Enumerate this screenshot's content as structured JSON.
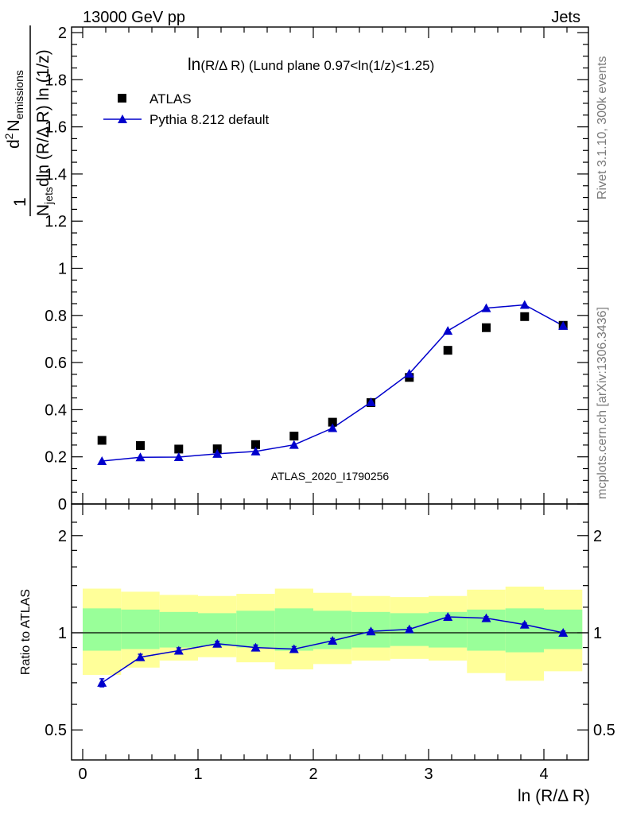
{
  "header": {
    "left": "13000 GeV pp",
    "right": "Jets"
  },
  "side_labels": {
    "rivet": "Rivet 3.1.10,  300k events",
    "mcplots": "mcplots.cern.ch [arXiv:1306.3436]"
  },
  "watermark": "ATLAS_2020_I1790256",
  "colors": {
    "mc": "#0000cc",
    "data": "#000000",
    "band_inner": "#99ff99",
    "band_outer": "#ffff99"
  },
  "chart_data": [
    {
      "type": "scatter",
      "panel": "main",
      "title_main": "ln",
      "title_rest": "(R/Δ R)  (Lund plane 0.97<ln(1/z)<1.25)",
      "ylabel": {
        "one": "1",
        "njets": "N",
        "njets_sub": "jets",
        "dln": "dln (R/Δ R) ln (1/z)",
        "d2n": "d",
        "d2n_sup": "2",
        "d2n_n": "N",
        "d2n_sub": "emissions"
      },
      "ylim": [
        0,
        2.03
      ],
      "yticks": [
        0,
        0.2,
        0.4,
        0.6,
        0.8,
        1,
        1.2,
        1.4,
        1.6,
        1.8,
        2
      ],
      "ytick_labels": [
        "0",
        "0.2",
        "0.4",
        "0.6",
        "0.8",
        "1",
        "1.2",
        "1.4",
        "1.6",
        "1.8",
        "2"
      ],
      "legend_position": "top-left",
      "series": [
        {
          "name": "ATLAS",
          "marker": "square",
          "x": [
            0.167,
            0.5,
            0.833,
            1.167,
            1.5,
            1.833,
            2.167,
            2.5,
            2.833,
            3.167,
            3.5,
            3.833,
            4.167
          ],
          "y": [
            0.27,
            0.248,
            0.233,
            0.234,
            0.252,
            0.288,
            0.347,
            0.43,
            0.537,
            0.652,
            0.748,
            0.795,
            0.758
          ]
        },
        {
          "name": "Pythia 8.212 default",
          "marker": "triangle",
          "x": [
            0.167,
            0.5,
            0.833,
            1.167,
            1.5,
            1.833,
            2.167,
            2.5,
            2.833,
            3.167,
            3.5,
            3.833,
            4.167
          ],
          "y": [
            0.182,
            0.198,
            0.199,
            0.213,
            0.223,
            0.251,
            0.322,
            0.432,
            0.553,
            0.735,
            0.831,
            0.845,
            0.756
          ]
        }
      ]
    },
    {
      "type": "line",
      "panel": "ratio",
      "ylabel": "Ratio to ATLAS",
      "xlabel": "ln (R/Δ R)",
      "xlim": [
        -0.1,
        4.4
      ],
      "xticks": [
        0,
        1,
        2,
        3,
        4
      ],
      "xtick_labels": [
        "0",
        "1",
        "2",
        "3",
        "4"
      ],
      "ylim": [
        0.4,
        2.4
      ],
      "yscale": "log",
      "yticks": [
        0.5,
        1,
        2
      ],
      "ytick_labels": [
        "0.5",
        "1",
        "2"
      ],
      "bins": [
        0,
        0.333,
        0.667,
        1.0,
        1.333,
        1.667,
        2.0,
        2.333,
        2.667,
        3.0,
        3.333,
        3.667,
        4.0,
        4.333
      ],
      "band_outer": [
        [
          0.74,
          1.37
        ],
        [
          0.78,
          1.34
        ],
        [
          0.82,
          1.31
        ],
        [
          0.84,
          1.3
        ],
        [
          0.81,
          1.32
        ],
        [
          0.77,
          1.37
        ],
        [
          0.8,
          1.33
        ],
        [
          0.82,
          1.3
        ],
        [
          0.83,
          1.29
        ],
        [
          0.82,
          1.3
        ],
        [
          0.75,
          1.36
        ],
        [
          0.71,
          1.39
        ],
        [
          0.76,
          1.36
        ]
      ],
      "band_inner": [
        [
          0.88,
          1.19
        ],
        [
          0.89,
          1.18
        ],
        [
          0.9,
          1.16
        ],
        [
          0.91,
          1.15
        ],
        [
          0.9,
          1.17
        ],
        [
          0.88,
          1.19
        ],
        [
          0.89,
          1.17
        ],
        [
          0.9,
          1.16
        ],
        [
          0.91,
          1.15
        ],
        [
          0.9,
          1.16
        ],
        [
          0.88,
          1.18
        ],
        [
          0.87,
          1.19
        ],
        [
          0.89,
          1.18
        ]
      ],
      "reference": 1,
      "series": [
        {
          "name": "Pythia 8.212 default",
          "x": [
            0.167,
            0.5,
            0.833,
            1.167,
            1.5,
            1.833,
            2.167,
            2.5,
            2.833,
            3.167,
            3.5,
            3.833,
            4.167
          ],
          "y": [
            0.7,
            0.84,
            0.88,
            0.925,
            0.9,
            0.89,
            0.945,
            1.01,
            1.025,
            1.12,
            1.11,
            1.06,
            1.0
          ],
          "err": [
            0.02,
            0.018,
            0.018,
            0.016,
            0.016,
            0.016,
            0.015,
            0.013,
            0.012,
            0.012,
            0.012,
            0.012,
            0.012
          ]
        }
      ]
    }
  ]
}
